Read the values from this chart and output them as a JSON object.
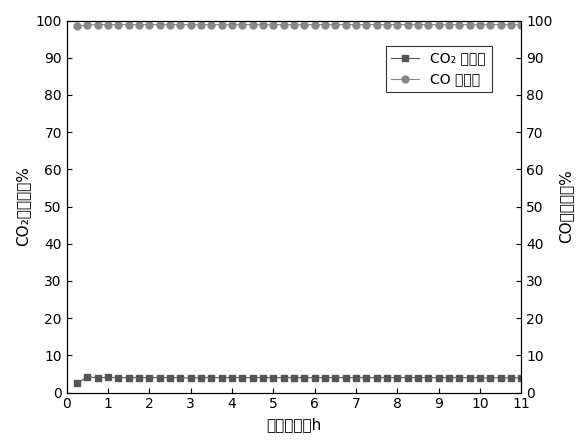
{
  "x_co2": [
    0.25,
    0.5,
    0.75,
    1.0,
    1.25,
    1.5,
    1.75,
    2.0,
    2.25,
    2.5,
    2.75,
    3.0,
    3.25,
    3.5,
    3.75,
    4.0,
    4.25,
    4.5,
    4.75,
    5.0,
    5.25,
    5.5,
    5.75,
    6.0,
    6.25,
    6.5,
    6.75,
    7.0,
    7.25,
    7.5,
    7.75,
    8.0,
    8.25,
    8.5,
    8.75,
    9.0,
    9.25,
    9.5,
    9.75,
    10.0,
    10.25,
    10.5,
    10.75,
    11.0
  ],
  "y_co2": [
    2.5,
    4.2,
    4.0,
    4.1,
    4.0,
    4.0,
    4.0,
    4.0,
    4.0,
    4.0,
    4.0,
    3.9,
    4.0,
    4.0,
    4.0,
    4.0,
    4.0,
    4.0,
    4.0,
    4.0,
    4.0,
    4.0,
    4.0,
    4.0,
    4.0,
    4.0,
    4.0,
    4.0,
    4.0,
    4.0,
    4.0,
    4.0,
    4.0,
    4.0,
    4.0,
    4.0,
    4.0,
    4.0,
    4.0,
    4.0,
    3.9,
    4.0,
    3.9,
    4.0
  ],
  "x_co": [
    0.25,
    0.5,
    0.75,
    1.0,
    1.25,
    1.5,
    1.75,
    2.0,
    2.25,
    2.5,
    2.75,
    3.0,
    3.25,
    3.5,
    3.75,
    4.0,
    4.25,
    4.5,
    4.75,
    5.0,
    5.25,
    5.5,
    5.75,
    6.0,
    6.25,
    6.5,
    6.75,
    7.0,
    7.25,
    7.5,
    7.75,
    8.0,
    8.25,
    8.5,
    8.75,
    9.0,
    9.25,
    9.5,
    9.75,
    10.0,
    10.25,
    10.5,
    10.75,
    11.0
  ],
  "y_co": [
    98.5,
    98.8,
    98.9,
    98.9,
    98.9,
    98.9,
    98.9,
    98.9,
    98.9,
    98.9,
    98.9,
    98.9,
    98.9,
    98.9,
    98.9,
    98.9,
    98.9,
    98.9,
    98.9,
    98.9,
    98.9,
    98.9,
    98.9,
    98.9,
    98.9,
    98.9,
    98.9,
    98.9,
    98.9,
    98.9,
    98.9,
    98.9,
    98.9,
    98.9,
    98.9,
    98.9,
    98.9,
    98.9,
    98.9,
    98.9,
    98.9,
    98.9,
    98.9,
    98.9
  ],
  "co2_color": "#555555",
  "co_color": "#888888",
  "co2_marker": "s",
  "co_marker": "o",
  "co2_label": "CO₂ 转化率",
  "co_label": "CO 选择性",
  "xlabel": "反应时间／h",
  "ylabel_left": "CO₂转化率／%",
  "ylabel_right": "CO选择性／%",
  "xlim": [
    0,
    11
  ],
  "ylim": [
    0,
    100
  ],
  "xticks": [
    0,
    1,
    2,
    3,
    4,
    5,
    6,
    7,
    8,
    9,
    10,
    11
  ],
  "yticks": [
    0,
    10,
    20,
    30,
    40,
    50,
    60,
    70,
    80,
    90,
    100
  ],
  "background_color": "#ffffff",
  "marker_size": 5,
  "line_width": 0.8,
  "legend_fontsize": 10,
  "tick_fontsize": 10,
  "label_fontsize": 11
}
